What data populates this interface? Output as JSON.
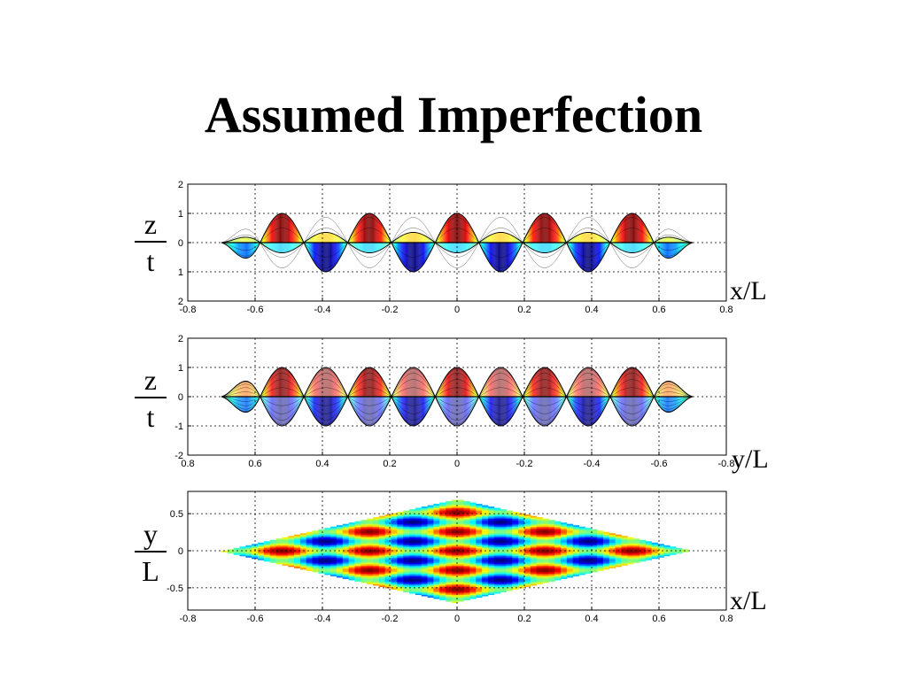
{
  "title": "Assumed Imperfection",
  "chart_data": [
    {
      "type": "surface",
      "view": "side view along x",
      "xlim": [
        -0.8,
        0.8
      ],
      "ylim": [
        -2,
        2
      ],
      "xticks": [
        "-0.8",
        "-0.6",
        "-0.4",
        "-0.2",
        "0",
        "0.2",
        "0.4",
        "0.6",
        "0.8"
      ],
      "yticks": [
        "2",
        "1",
        "0",
        "1",
        "2"
      ],
      "ylabel_num": "z",
      "ylabel_den": "t",
      "xlabel": "x/L",
      "grid": true,
      "peaks_x": [
        -0.65,
        -0.52,
        -0.39,
        -0.26,
        -0.13,
        0,
        0.13,
        0.26,
        0.39,
        0.52,
        0.65
      ],
      "troughs_x": [
        -0.585,
        -0.455,
        -0.325,
        -0.195,
        -0.065,
        0.065,
        0.195,
        0.325,
        0.455,
        0.585
      ],
      "amplitude": 1,
      "colormap": "jet"
    },
    {
      "type": "surface",
      "view": "side view along y",
      "xlim": [
        -0.8,
        0.8
      ],
      "ylim": [
        -2,
        2
      ],
      "xticks": [
        "0.8",
        "0.6",
        "0.4",
        "0.2",
        "0",
        "-0.2",
        "-0.4",
        "-0.6",
        "-0.8"
      ],
      "yticks": [
        "2",
        "1",
        "0",
        "-1",
        "-2"
      ],
      "ylabel_num": "z",
      "ylabel_den": "t",
      "xlabel": "y/L",
      "grid": true,
      "amplitude": 1,
      "colormap": "jet"
    },
    {
      "type": "heatmap",
      "view": "plan view",
      "xlim": [
        -0.8,
        0.8
      ],
      "ylim": [
        -0.8,
        0.8
      ],
      "xticks": [
        "-0.8",
        "-0.6",
        "-0.4",
        "-0.2",
        "0",
        "0.2",
        "0.4",
        "0.6",
        "0.8"
      ],
      "yticks": [
        "0.5",
        "0",
        "-0.5"
      ],
      "ylabel_num": "y",
      "ylabel_den": "L",
      "xlabel": "x/L",
      "grid": true,
      "domain_shape": "rhombus",
      "rhombus_half_x": 0.7,
      "rhombus_half_y": 0.7,
      "colormap": "jet"
    }
  ]
}
